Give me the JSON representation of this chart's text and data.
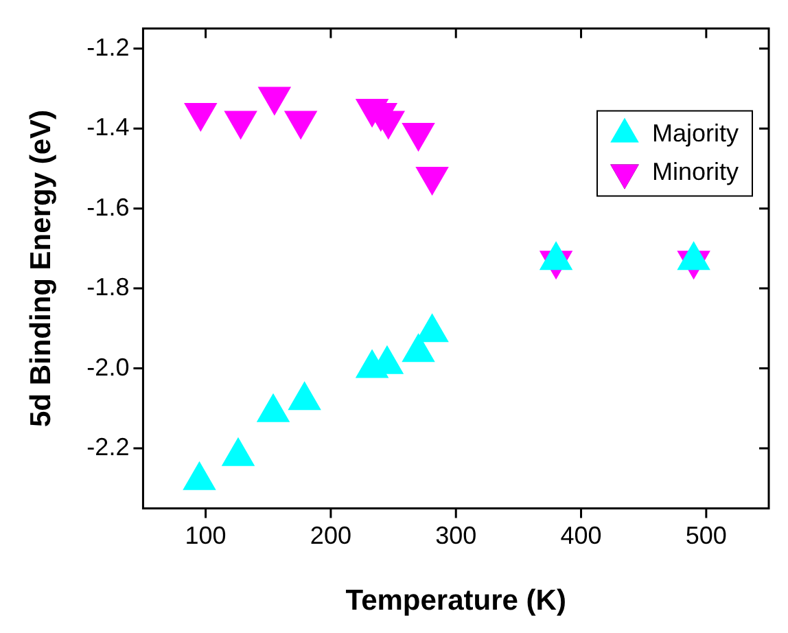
{
  "chart_data": {
    "type": "scatter",
    "xlabel": "Temperature (K)",
    "ylabel": "5d Binding Energy (eV)",
    "xlim": [
      50,
      550
    ],
    "xticks": [
      100,
      200,
      300,
      400,
      500
    ],
    "ylim": [
      -2.35,
      -1.15
    ],
    "yticks": [
      -2.2,
      {
        "value": -2.0,
        "label": "-2.0"
      },
      -1.8,
      -1.6,
      -1.4,
      -1.2
    ],
    "grid": false,
    "legend": "top right",
    "series": [
      {
        "name": "Majority",
        "color": "#00ffff",
        "marker": "triangle",
        "x": [
          95,
          126,
          154,
          179,
          233,
          245,
          270,
          281,
          380,
          490
        ],
        "values": [
          -2.28,
          -2.22,
          -2.11,
          -2.08,
          -2.0,
          -1.99,
          -1.96,
          -1.91,
          -1.73,
          -1.73
        ]
      },
      {
        "name": "Minority",
        "color": "#ff00ff",
        "marker": "triangle-down",
        "x": [
          96,
          128,
          155,
          176,
          233,
          240,
          246,
          270,
          281,
          380,
          490
        ],
        "values": [
          -1.36,
          -1.38,
          -1.32,
          -1.38,
          -1.35,
          -1.36,
          -1.38,
          -1.41,
          -1.52,
          -1.73,
          -1.73
        ]
      }
    ]
  }
}
